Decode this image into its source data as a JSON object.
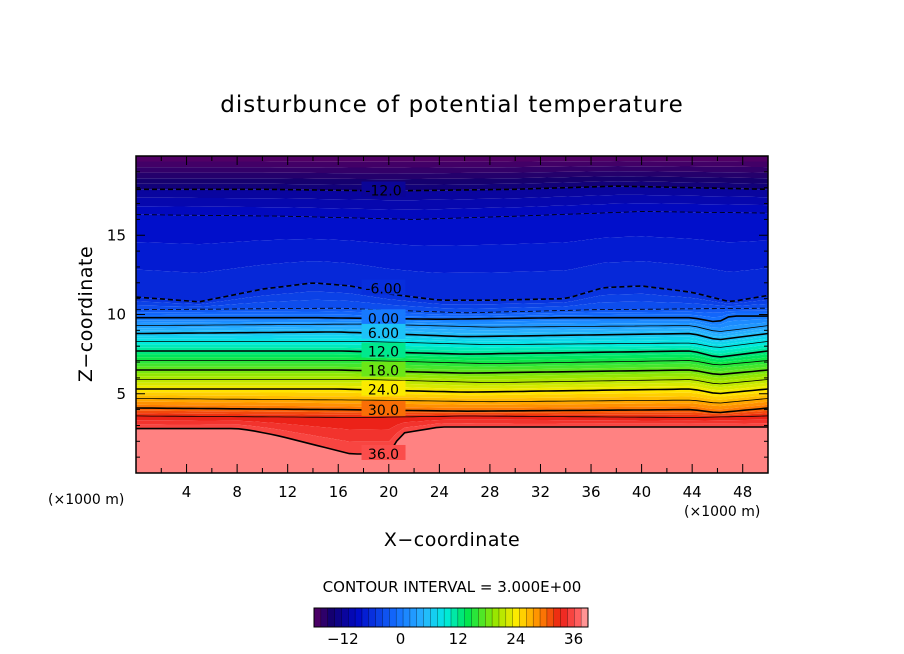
{
  "chart_data": {
    "type": "contour",
    "title": "disturbunce of potential temperature",
    "xlabel": "X−coordinate",
    "ylabel": "Z−coordinate",
    "x_unit": "(×1000 m)",
    "y_unit": "(×1000 m)",
    "xlim": [
      0,
      50
    ],
    "ylim": [
      0,
      20
    ],
    "x_ticks": [
      4,
      8,
      12,
      16,
      20,
      24,
      28,
      32,
      36,
      40,
      44,
      48
    ],
    "y_ticks": [
      5,
      10,
      15
    ],
    "contour_interval_text": "CONTOUR INTERVAL = 3.000E+00",
    "contour_interval": 3,
    "levels_range": [
      -18,
      39
    ],
    "contour_lines": [
      {
        "level": -12,
        "label": "-12.0",
        "dashed": true,
        "profile": [
          [
            0,
            17.9
          ],
          [
            10,
            17.9
          ],
          [
            20,
            17.8
          ],
          [
            30,
            17.9
          ],
          [
            38,
            18.1
          ],
          [
            44,
            18.0
          ],
          [
            50,
            17.9
          ]
        ]
      },
      {
        "level": -9,
        "label": "",
        "dashed": true,
        "profile": [
          [
            0,
            16.3
          ],
          [
            12,
            16.2
          ],
          [
            22,
            16.0
          ],
          [
            30,
            16.2
          ],
          [
            40,
            16.5
          ],
          [
            50,
            16.4
          ]
        ]
      },
      {
        "level": -6,
        "label": "-6.00",
        "dashed": true,
        "profile": [
          [
            0,
            11.1
          ],
          [
            5,
            10.8
          ],
          [
            10,
            11.6
          ],
          [
            14,
            12.0
          ],
          [
            17,
            11.8
          ],
          [
            20,
            11.3
          ],
          [
            24,
            10.9
          ],
          [
            28,
            10.9
          ],
          [
            34,
            11.0
          ],
          [
            37,
            11.7
          ],
          [
            40,
            11.8
          ],
          [
            44,
            11.4
          ],
          [
            47,
            10.8
          ],
          [
            50,
            11.2
          ]
        ]
      },
      {
        "level": -3,
        "label": "",
        "dashed": true,
        "profile": [
          [
            0,
            10.3
          ],
          [
            16,
            10.4
          ],
          [
            26,
            10.1
          ],
          [
            36,
            10.3
          ],
          [
            50,
            10.4
          ]
        ]
      },
      {
        "level": 0,
        "label": "0.00",
        "dashed": false,
        "profile": [
          [
            0,
            9.8
          ],
          [
            14,
            9.8
          ],
          [
            24,
            9.7
          ],
          [
            34,
            9.8
          ],
          [
            44,
            9.8
          ],
          [
            46,
            9.5
          ],
          [
            47,
            9.9
          ],
          [
            50,
            9.9
          ]
        ]
      },
      {
        "level": 3,
        "label": "",
        "dashed": false,
        "profile": [
          [
            0,
            9.3
          ],
          [
            18,
            9.4
          ],
          [
            28,
            9.2
          ],
          [
            44,
            9.3
          ],
          [
            46,
            8.9
          ],
          [
            50,
            9.3
          ]
        ]
      },
      {
        "level": 6,
        "label": "6.00",
        "dashed": false,
        "profile": [
          [
            0,
            8.8
          ],
          [
            16,
            8.9
          ],
          [
            26,
            8.6
          ],
          [
            44,
            8.8
          ],
          [
            46,
            8.4
          ],
          [
            50,
            8.8
          ]
        ]
      },
      {
        "level": 9,
        "label": "",
        "dashed": false,
        "profile": [
          [
            0,
            8.3
          ],
          [
            18,
            8.3
          ],
          [
            28,
            8.1
          ],
          [
            44,
            8.2
          ],
          [
            46,
            7.9
          ],
          [
            50,
            8.3
          ]
        ]
      },
      {
        "level": 12,
        "label": "12.0",
        "dashed": false,
        "profile": [
          [
            0,
            7.7
          ],
          [
            16,
            7.7
          ],
          [
            26,
            7.5
          ],
          [
            44,
            7.7
          ],
          [
            46,
            7.3
          ],
          [
            50,
            7.7
          ]
        ]
      },
      {
        "level": 15,
        "label": "",
        "dashed": false,
        "profile": [
          [
            0,
            7.1
          ],
          [
            18,
            7.1
          ],
          [
            28,
            6.9
          ],
          [
            44,
            7.1
          ],
          [
            46,
            6.8
          ],
          [
            50,
            7.1
          ]
        ]
      },
      {
        "level": 18,
        "label": "18.0",
        "dashed": false,
        "profile": [
          [
            0,
            6.5
          ],
          [
            16,
            6.5
          ],
          [
            26,
            6.3
          ],
          [
            44,
            6.5
          ],
          [
            46,
            6.2
          ],
          [
            50,
            6.5
          ]
        ]
      },
      {
        "level": 21,
        "label": "",
        "dashed": false,
        "profile": [
          [
            0,
            5.9
          ],
          [
            18,
            5.9
          ],
          [
            28,
            5.7
          ],
          [
            44,
            5.9
          ],
          [
            46,
            5.6
          ],
          [
            50,
            5.9
          ]
        ]
      },
      {
        "level": 24,
        "label": "24.0",
        "dashed": false,
        "profile": [
          [
            0,
            5.3
          ],
          [
            16,
            5.3
          ],
          [
            26,
            5.1
          ],
          [
            44,
            5.3
          ],
          [
            46,
            5.0
          ],
          [
            50,
            5.3
          ]
        ]
      },
      {
        "level": 27,
        "label": "",
        "dashed": false,
        "profile": [
          [
            0,
            4.7
          ],
          [
            18,
            4.6
          ],
          [
            28,
            4.5
          ],
          [
            44,
            4.6
          ],
          [
            46,
            4.4
          ],
          [
            50,
            4.7
          ]
        ]
      },
      {
        "level": 30,
        "label": "30.0",
        "dashed": false,
        "profile": [
          [
            0,
            4.1
          ],
          [
            16,
            4.0
          ],
          [
            26,
            3.9
          ],
          [
            44,
            4.0
          ],
          [
            46,
            3.8
          ],
          [
            50,
            4.1
          ]
        ]
      },
      {
        "level": 33,
        "label": "",
        "dashed": false,
        "profile": [
          [
            0,
            3.6
          ],
          [
            18,
            3.5
          ],
          [
            26,
            3.6
          ],
          [
            44,
            3.5
          ],
          [
            50,
            3.6
          ]
        ]
      },
      {
        "level": 36,
        "label": "36.0",
        "dashed": false,
        "profile": [
          [
            0,
            2.8
          ],
          [
            8,
            2.8
          ],
          [
            9,
            2.7
          ],
          [
            11,
            2.4
          ],
          [
            14,
            1.8
          ],
          [
            17,
            1.2
          ],
          [
            20,
            1.2
          ],
          [
            21,
            2.5
          ],
          [
            24,
            2.9
          ],
          [
            30,
            2.9
          ],
          [
            40,
            2.9
          ],
          [
            50,
            2.9
          ]
        ]
      }
    ],
    "colorbar": {
      "tick_labels": [
        "-12",
        "0",
        "12",
        "24",
        "36"
      ],
      "tick_values": [
        -12,
        0,
        12,
        24,
        36
      ]
    }
  }
}
